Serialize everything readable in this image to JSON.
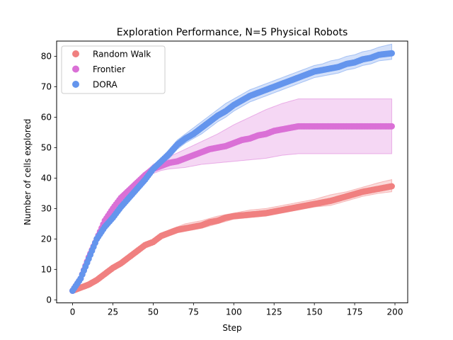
{
  "chart_data": {
    "type": "scatter",
    "title": "Exploration Performance, N=5 Physical Robots",
    "xlabel": "Step",
    "ylabel": "Number of cells explored",
    "xlim": [
      -9.9,
      207.9
    ],
    "ylim": [
      -1.0,
      85.0
    ],
    "xticks": [
      0,
      25,
      50,
      75,
      100,
      125,
      150,
      175,
      200
    ],
    "yticks": [
      0,
      10,
      20,
      30,
      40,
      50,
      60,
      70,
      80
    ],
    "grid": false,
    "legend_position": "upper-left",
    "series": [
      {
        "name": "Random Walk",
        "color": "#f08080",
        "mean": [
          [
            0,
            3
          ],
          [
            5,
            4
          ],
          [
            10,
            5
          ],
          [
            15,
            6.5
          ],
          [
            20,
            8.5
          ],
          [
            25,
            10.5
          ],
          [
            30,
            12
          ],
          [
            35,
            14
          ],
          [
            40,
            16
          ],
          [
            45,
            18
          ],
          [
            50,
            19
          ],
          [
            55,
            21
          ],
          [
            60,
            22
          ],
          [
            65,
            23
          ],
          [
            70,
            23.5
          ],
          [
            75,
            24
          ],
          [
            80,
            24.5
          ],
          [
            85,
            25.5
          ],
          [
            90,
            26
          ],
          [
            95,
            27
          ],
          [
            100,
            27.5
          ],
          [
            110,
            28
          ],
          [
            120,
            28.5
          ],
          [
            130,
            29.5
          ],
          [
            140,
            30.5
          ],
          [
            150,
            31.5
          ],
          [
            160,
            32.5
          ],
          [
            170,
            34
          ],
          [
            180,
            35.5
          ],
          [
            190,
            36.5
          ],
          [
            198,
            37.3
          ]
        ],
        "upper": [
          [
            0,
            3
          ],
          [
            5,
            4.5
          ],
          [
            10,
            5.5
          ],
          [
            15,
            7
          ],
          [
            20,
            9
          ],
          [
            25,
            11
          ],
          [
            30,
            12.5
          ],
          [
            35,
            14.5
          ],
          [
            40,
            17
          ],
          [
            45,
            19
          ],
          [
            50,
            20
          ],
          [
            55,
            22
          ],
          [
            60,
            23
          ],
          [
            65,
            24
          ],
          [
            70,
            25
          ],
          [
            75,
            25.5
          ],
          [
            80,
            26
          ],
          [
            90,
            27.5
          ],
          [
            100,
            28.5
          ],
          [
            110,
            29.5
          ],
          [
            120,
            30
          ],
          [
            130,
            31
          ],
          [
            140,
            32
          ],
          [
            150,
            33
          ],
          [
            160,
            34.5
          ],
          [
            170,
            35.5
          ],
          [
            180,
            37
          ],
          [
            190,
            38.5
          ],
          [
            198,
            39.5
          ]
        ],
        "lower": [
          [
            0,
            3
          ],
          [
            5,
            3.5
          ],
          [
            10,
            4.5
          ],
          [
            15,
            6
          ],
          [
            20,
            8
          ],
          [
            25,
            10
          ],
          [
            30,
            11.5
          ],
          [
            35,
            13
          ],
          [
            40,
            15
          ],
          [
            45,
            17
          ],
          [
            50,
            18
          ],
          [
            55,
            20
          ],
          [
            60,
            21
          ],
          [
            65,
            22
          ],
          [
            70,
            22.5
          ],
          [
            75,
            23
          ],
          [
            80,
            23.5
          ],
          [
            90,
            25
          ],
          [
            100,
            26.5
          ],
          [
            110,
            27
          ],
          [
            120,
            27.5
          ],
          [
            130,
            28.5
          ],
          [
            140,
            29.5
          ],
          [
            150,
            30.5
          ],
          [
            160,
            31
          ],
          [
            170,
            32.5
          ],
          [
            180,
            34
          ],
          [
            190,
            35
          ],
          [
            198,
            35.5
          ]
        ]
      },
      {
        "name": "Frontier",
        "color": "#da70d6",
        "mean": [
          [
            0,
            3
          ],
          [
            5,
            7
          ],
          [
            10,
            14
          ],
          [
            15,
            20
          ],
          [
            20,
            26
          ],
          [
            25,
            30
          ],
          [
            30,
            33.5
          ],
          [
            35,
            36
          ],
          [
            40,
            38.5
          ],
          [
            45,
            41
          ],
          [
            50,
            43
          ],
          [
            55,
            44
          ],
          [
            60,
            45
          ],
          [
            65,
            45.5
          ],
          [
            70,
            46.5
          ],
          [
            75,
            47.5
          ],
          [
            80,
            48.5
          ],
          [
            85,
            49.5
          ],
          [
            90,
            50
          ],
          [
            95,
            50.5
          ],
          [
            100,
            51.5
          ],
          [
            105,
            52.5
          ],
          [
            110,
            53
          ],
          [
            115,
            54
          ],
          [
            120,
            54.5
          ],
          [
            125,
            55.5
          ],
          [
            130,
            56
          ],
          [
            135,
            56.5
          ],
          [
            140,
            57
          ],
          [
            150,
            57
          ],
          [
            170,
            57
          ],
          [
            198,
            57
          ]
        ],
        "upper": [
          [
            0,
            3
          ],
          [
            5,
            7.5
          ],
          [
            10,
            14.5
          ],
          [
            15,
            20.5
          ],
          [
            20,
            27
          ],
          [
            25,
            31
          ],
          [
            30,
            34.5
          ],
          [
            35,
            37
          ],
          [
            40,
            39.5
          ],
          [
            45,
            42
          ],
          [
            50,
            44.5
          ],
          [
            55,
            46
          ],
          [
            60,
            47
          ],
          [
            70,
            49.5
          ],
          [
            80,
            52
          ],
          [
            90,
            54.5
          ],
          [
            100,
            57.5
          ],
          [
            110,
            60
          ],
          [
            120,
            62.5
          ],
          [
            130,
            64.5
          ],
          [
            140,
            66
          ],
          [
            170,
            66
          ],
          [
            198,
            66
          ]
        ],
        "lower": [
          [
            0,
            3
          ],
          [
            5,
            6.5
          ],
          [
            10,
            13.5
          ],
          [
            15,
            19.5
          ],
          [
            20,
            25
          ],
          [
            25,
            29
          ],
          [
            30,
            32.5
          ],
          [
            35,
            35
          ],
          [
            40,
            37.5
          ],
          [
            45,
            40
          ],
          [
            50,
            41.5
          ],
          [
            55,
            42.5
          ],
          [
            60,
            43
          ],
          [
            70,
            43.5
          ],
          [
            80,
            44.5
          ],
          [
            90,
            45
          ],
          [
            100,
            45.5
          ],
          [
            110,
            46
          ],
          [
            120,
            46.5
          ],
          [
            130,
            47.5
          ],
          [
            140,
            48
          ],
          [
            170,
            48
          ],
          [
            198,
            48
          ]
        ]
      },
      {
        "name": "DORA",
        "color": "#6495ed",
        "mean": [
          [
            0,
            3
          ],
          [
            5,
            7
          ],
          [
            10,
            13.5
          ],
          [
            15,
            20
          ],
          [
            20,
            24
          ],
          [
            25,
            27
          ],
          [
            30,
            30.5
          ],
          [
            35,
            33.5
          ],
          [
            40,
            36.5
          ],
          [
            45,
            39.5
          ],
          [
            50,
            43
          ],
          [
            55,
            45.5
          ],
          [
            60,
            48
          ],
          [
            65,
            51
          ],
          [
            70,
            53
          ],
          [
            75,
            54.5
          ],
          [
            80,
            56.5
          ],
          [
            85,
            58.5
          ],
          [
            90,
            60.5
          ],
          [
            95,
            62
          ],
          [
            100,
            64
          ],
          [
            105,
            65.5
          ],
          [
            110,
            67
          ],
          [
            115,
            68
          ],
          [
            120,
            69
          ],
          [
            125,
            70
          ],
          [
            130,
            71
          ],
          [
            135,
            72
          ],
          [
            140,
            73
          ],
          [
            145,
            74
          ],
          [
            150,
            75
          ],
          [
            155,
            75.5
          ],
          [
            160,
            76
          ],
          [
            165,
            76.5
          ],
          [
            170,
            77.5
          ],
          [
            175,
            78
          ],
          [
            180,
            79
          ],
          [
            185,
            79.5
          ],
          [
            190,
            80.5
          ],
          [
            198,
            81
          ]
        ],
        "upper": [
          [
            0,
            3
          ],
          [
            5,
            7.5
          ],
          [
            10,
            14
          ],
          [
            15,
            20.5
          ],
          [
            20,
            24.5
          ],
          [
            25,
            27.5
          ],
          [
            30,
            31
          ],
          [
            35,
            34
          ],
          [
            40,
            37.5
          ],
          [
            45,
            40.5
          ],
          [
            50,
            44
          ],
          [
            55,
            46.5
          ],
          [
            60,
            49.5
          ],
          [
            65,
            52.5
          ],
          [
            70,
            54.5
          ],
          [
            75,
            56.5
          ],
          [
            80,
            58.5
          ],
          [
            85,
            60.5
          ],
          [
            90,
            62.5
          ],
          [
            95,
            64.5
          ],
          [
            100,
            66
          ],
          [
            105,
            67.5
          ],
          [
            110,
            69
          ],
          [
            115,
            70
          ],
          [
            120,
            71
          ],
          [
            125,
            72
          ],
          [
            130,
            73
          ],
          [
            135,
            74
          ],
          [
            140,
            75
          ],
          [
            145,
            76
          ],
          [
            150,
            77
          ],
          [
            155,
            77.5
          ],
          [
            160,
            78.5
          ],
          [
            165,
            79
          ],
          [
            170,
            80
          ],
          [
            175,
            80.5
          ],
          [
            180,
            81.5
          ],
          [
            185,
            82
          ],
          [
            190,
            83
          ],
          [
            198,
            84
          ]
        ],
        "lower": [
          [
            0,
            3
          ],
          [
            5,
            6.5
          ],
          [
            10,
            13
          ],
          [
            15,
            19.5
          ],
          [
            20,
            23.5
          ],
          [
            25,
            26.5
          ],
          [
            30,
            30
          ],
          [
            35,
            33
          ],
          [
            40,
            35.5
          ],
          [
            45,
            38.5
          ],
          [
            50,
            42
          ],
          [
            55,
            44.5
          ],
          [
            60,
            46.5
          ],
          [
            65,
            49.5
          ],
          [
            70,
            51.5
          ],
          [
            75,
            53
          ],
          [
            80,
            54.5
          ],
          [
            85,
            56.5
          ],
          [
            90,
            58.5
          ],
          [
            95,
            60
          ],
          [
            100,
            62
          ],
          [
            105,
            63.5
          ],
          [
            110,
            65
          ],
          [
            115,
            66
          ],
          [
            120,
            67
          ],
          [
            125,
            68
          ],
          [
            130,
            69
          ],
          [
            135,
            70
          ],
          [
            140,
            71
          ],
          [
            145,
            72
          ],
          [
            150,
            73
          ],
          [
            155,
            73.5
          ],
          [
            160,
            74
          ],
          [
            165,
            74.5
          ],
          [
            170,
            75.5
          ],
          [
            175,
            76
          ],
          [
            180,
            77
          ],
          [
            185,
            77.5
          ],
          [
            190,
            78.5
          ],
          [
            198,
            79
          ]
        ]
      }
    ]
  }
}
